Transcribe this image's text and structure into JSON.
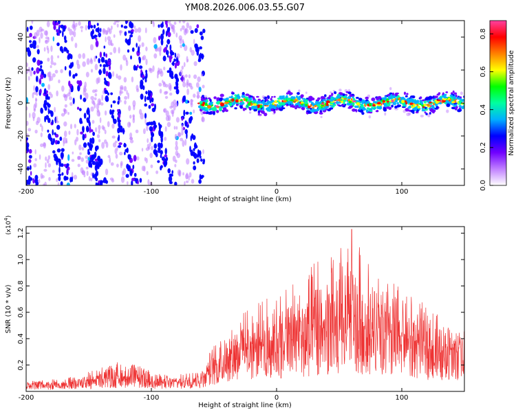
{
  "title": "YM08.2026.006.03.55.G07",
  "chart_data": [
    {
      "type": "heatmap",
      "xlabel": "Height of straight line (km)",
      "ylabel": "Frequency (Hz)",
      "xlim": [
        -200,
        150
      ],
      "ylim": [
        -50,
        50
      ],
      "xticks": [
        -200,
        -100,
        0,
        100
      ],
      "xtick_labels": [
        "-200",
        "-100",
        "0",
        "100"
      ],
      "yticks": [
        -40,
        -20,
        0,
        20,
        40
      ],
      "ytick_labels": [
        "-40",
        "-20",
        "0",
        "20",
        "40"
      ],
      "regions": [
        {
          "x_range": [
            -200,
            -62
          ],
          "pattern": "diagonal bands spanning full frequency range",
          "amplitude": 0.2
        },
        {
          "x_range": [
            -62,
            150
          ],
          "pattern": "concentrated band near 0 Hz, half-width about 7 Hz",
          "amplitude": 0.35,
          "peak_amplitude": 0.85
        }
      ],
      "colorbar": {
        "label": "Normalized spectral amplitude",
        "range": [
          0.0,
          0.87
        ],
        "ticks": [
          0.0,
          0.2,
          0.4,
          0.6,
          0.8
        ],
        "tick_labels": [
          "0.0",
          "0.2",
          "0.4",
          "0.6",
          "0.8"
        ],
        "colors": [
          "#ffffff",
          "#c080ff",
          "#7000ff",
          "#0000ff",
          "#00b0ff",
          "#00ffa0",
          "#00ff00",
          "#ffff00",
          "#ff8000",
          "#ff0000",
          "#ff40a0"
        ]
      }
    },
    {
      "type": "line",
      "xlabel": "Height of straight line (km)",
      "ylabel": "SNR (10 * v/v)",
      "y_multiplier": "(x10",
      "y_multiplier_exp": "4",
      "y_multiplier_close": ")",
      "xlim": [
        -200,
        150
      ],
      "ylim": [
        0,
        12500
      ],
      "xticks": [
        -200,
        -100,
        0,
        100
      ],
      "xtick_labels": [
        "-200",
        "-100",
        "0",
        "100"
      ],
      "yticks": [
        2000,
        4000,
        6000,
        8000,
        10000,
        12000
      ],
      "ytick_labels": [
        "0.2",
        "0.4",
        "0.6",
        "0.8",
        "1.0",
        "1.2"
      ],
      "color": "#ee3333",
      "series": [
        {
          "name": "SNR",
          "x": [
            -200,
            -180,
            -160,
            -140,
            -125,
            -110,
            -100,
            -90,
            -80,
            -70,
            -60,
            -50,
            -40,
            -30,
            -20,
            -10,
            0,
            10,
            20,
            30,
            40,
            50,
            60,
            70,
            80,
            90,
            100,
            110,
            120,
            130,
            140,
            150
          ],
          "mean": [
            500,
            500,
            600,
            900,
            1100,
            1000,
            800,
            700,
            700,
            800,
            1000,
            2000,
            2800,
            3300,
            3500,
            3700,
            3900,
            4100,
            4300,
            4500,
            4700,
            4700,
            4800,
            4600,
            4500,
            4300,
            4100,
            3800,
            3400,
            3200,
            3100,
            3300
          ],
          "peak": [
            800,
            900,
            1200,
            1800,
            2300,
            2000,
            1500,
            1300,
            1200,
            1500,
            1800,
            3500,
            4800,
            5700,
            6400,
            7000,
            7500,
            8000,
            8800,
            9800,
            10300,
            11000,
            12300,
            10500,
            9500,
            8500,
            8000,
            7200,
            6500,
            5800,
            5000,
            5500
          ]
        }
      ]
    }
  ]
}
